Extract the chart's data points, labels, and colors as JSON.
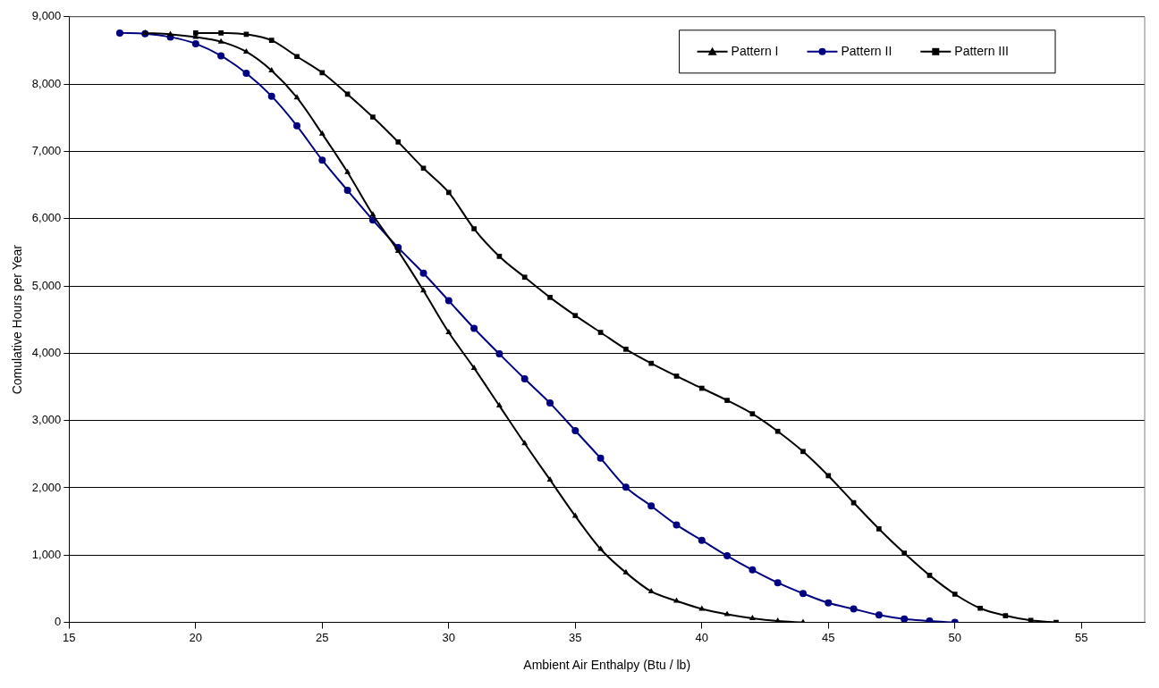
{
  "chart_data": {
    "type": "line",
    "xlabel": "Ambient Air Enthalpy (Btu / lb)",
    "ylabel": "Comulative Hours per Year",
    "xlim": [
      15,
      57.5
    ],
    "xticks": [
      15,
      20,
      25,
      30,
      35,
      40,
      45,
      50,
      55
    ],
    "ylim": [
      0,
      9000
    ],
    "yticks": [
      {
        "value": 0,
        "label": "0"
      },
      {
        "value": 1000,
        "label": "1,000"
      },
      {
        "value": 2000,
        "label": "2,000"
      },
      {
        "value": 3000,
        "label": "3,000"
      },
      {
        "value": 4000,
        "label": "4,000"
      },
      {
        "value": 5000,
        "label": "5,000"
      },
      {
        "value": 6000,
        "label": "6,000"
      },
      {
        "value": 7000,
        "label": "7,000"
      },
      {
        "value": 8000,
        "label": "8,000"
      },
      {
        "value": 9000,
        "label": "9,000"
      }
    ],
    "grid": "y",
    "legend": "top right",
    "line_style": "solid",
    "series": [
      {
        "name": "Pattern I",
        "color": "#000000",
        "marker": "triangle",
        "x": [
          18,
          19,
          20,
          21,
          22,
          23,
          24,
          25,
          26,
          27,
          28,
          29,
          30,
          31,
          32,
          33,
          34,
          35,
          36,
          37,
          38,
          39,
          40,
          41,
          42,
          43,
          44
        ],
        "values": [
          8760,
          8740,
          8700,
          8630,
          8480,
          8200,
          7800,
          7260,
          6690,
          6060,
          5520,
          4930,
          4310,
          3780,
          3220,
          2660,
          2120,
          1580,
          1090,
          740,
          460,
          320,
          200,
          120,
          60,
          20,
          0
        ]
      },
      {
        "name": "Pattern II",
        "color": "#000080",
        "marker": "circle",
        "x": [
          17,
          18,
          19,
          20,
          21,
          22,
          23,
          24,
          25,
          26,
          27,
          28,
          29,
          30,
          31,
          32,
          33,
          34,
          35,
          36,
          37,
          38,
          39,
          40,
          41,
          42,
          43,
          44,
          45,
          46,
          47,
          48,
          49,
          50
        ],
        "values": [
          8760,
          8750,
          8700,
          8600,
          8420,
          8160,
          7820,
          7380,
          6870,
          6420,
          5980,
          5570,
          5190,
          4780,
          4370,
          3990,
          3620,
          3260,
          2850,
          2440,
          2010,
          1730,
          1450,
          1220,
          990,
          780,
          590,
          430,
          290,
          200,
          110,
          50,
          20,
          0
        ]
      },
      {
        "name": "Pattern III",
        "color": "#000000",
        "marker": "square",
        "x": [
          20,
          21,
          22,
          23,
          24,
          25,
          26,
          27,
          28,
          29,
          30,
          31,
          32,
          33,
          34,
          35,
          36,
          37,
          38,
          39,
          40,
          41,
          42,
          43,
          44,
          45,
          46,
          47,
          48,
          49,
          50,
          51,
          52,
          53,
          54
        ],
        "values": [
          8760,
          8760,
          8740,
          8650,
          8410,
          8170,
          7850,
          7510,
          7140,
          6750,
          6390,
          5850,
          5440,
          5130,
          4830,
          4560,
          4310,
          4060,
          3850,
          3660,
          3480,
          3300,
          3100,
          2840,
          2540,
          2180,
          1780,
          1390,
          1030,
          700,
          420,
          210,
          100,
          30,
          0
        ]
      }
    ]
  }
}
